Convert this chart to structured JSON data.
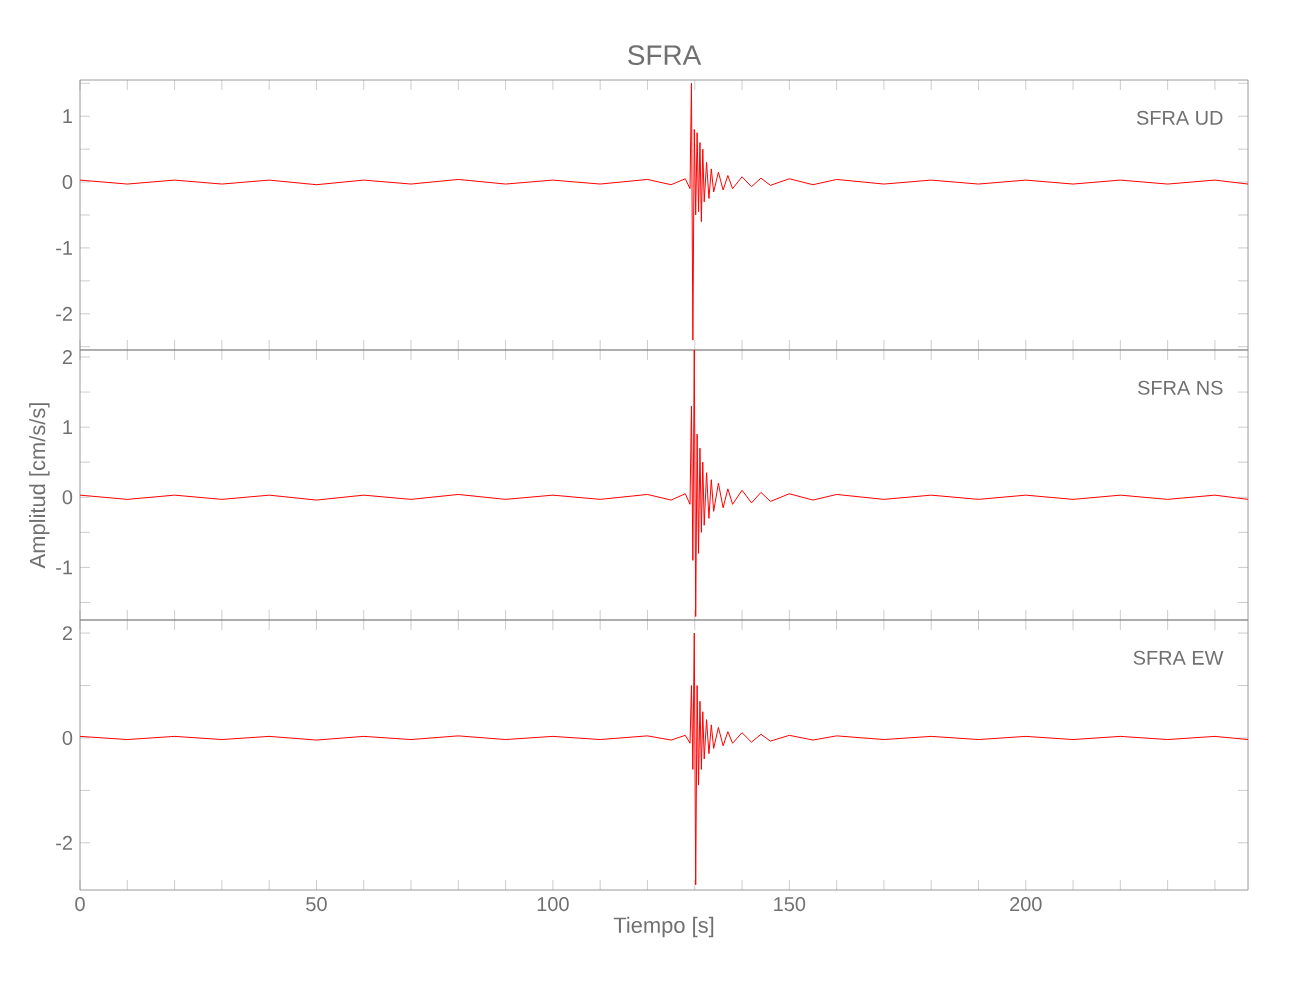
{
  "chart_data": [
    {
      "type": "line",
      "title": "SFRA",
      "annotations": [
        "SFRA UD"
      ],
      "tick_labels": "y",
      "x": [
        0,
        10,
        20,
        30,
        40,
        50,
        60,
        70,
        80,
        90,
        100,
        110,
        120,
        125,
        128,
        129,
        129.3,
        129.6,
        129.9,
        130.2,
        130.5,
        130.8,
        131.1,
        131.4,
        131.7,
        132,
        132.5,
        133,
        133.5,
        134,
        135,
        136,
        137,
        138,
        140,
        142,
        144,
        146,
        150,
        155,
        160,
        170,
        180,
        190,
        200,
        210,
        220,
        230,
        240,
        247
      ],
      "series": [
        {
          "color": "#ff0000",
          "values": [
            0.03,
            -0.03,
            0.03,
            -0.03,
            0.03,
            -0.04,
            0.03,
            -0.03,
            0.04,
            -0.03,
            0.03,
            -0.03,
            0.04,
            -0.04,
            0.05,
            -0.1,
            1.5,
            -2.4,
            0.8,
            -0.5,
            0.75,
            -0.45,
            0.6,
            -0.6,
            0.5,
            -0.3,
            0.3,
            -0.25,
            0.2,
            -0.15,
            0.15,
            -0.12,
            0.1,
            -0.1,
            0.08,
            -0.07,
            0.06,
            -0.05,
            0.05,
            -0.04,
            0.04,
            -0.03,
            0.03,
            -0.03,
            0.03,
            -0.03,
            0.03,
            -0.03,
            0.03,
            -0.03
          ]
        }
      ],
      "xlim": [
        0,
        247
      ],
      "ylim": [
        -2.55,
        1.55
      ],
      "xticks": [
        {
          "value": 0,
          "label": null
        },
        {
          "value": 10,
          "label": null
        },
        {
          "value": 20,
          "label": null
        },
        {
          "value": 30,
          "label": null
        },
        {
          "value": 40,
          "label": null
        },
        {
          "value": 50,
          "label": null
        },
        {
          "value": 60,
          "label": null
        },
        {
          "value": 70,
          "label": null
        },
        {
          "value": 80,
          "label": null
        },
        {
          "value": 90,
          "label": null
        },
        {
          "value": 100,
          "label": null
        },
        {
          "value": 110,
          "label": null
        },
        {
          "value": 120,
          "label": null
        },
        {
          "value": 130,
          "label": null
        },
        {
          "value": 140,
          "label": null
        },
        {
          "value": 150,
          "label": null
        },
        {
          "value": 160,
          "label": null
        },
        {
          "value": 170,
          "label": null
        },
        {
          "value": 180,
          "label": null
        },
        {
          "value": 190,
          "label": null
        },
        {
          "value": 200,
          "label": null
        },
        {
          "value": 210,
          "label": null
        },
        {
          "value": 220,
          "label": null
        },
        {
          "value": 230,
          "label": null
        },
        {
          "value": 240,
          "label": null
        }
      ],
      "yticks": [
        {
          "value": 1.5,
          "label": null
        },
        1,
        {
          "value": 0.5,
          "label": null
        },
        0,
        {
          "value": -0.5,
          "label": null
        },
        -1,
        {
          "value": -1.5,
          "label": null
        },
        -2,
        {
          "value": -2.5,
          "label": null
        }
      ]
    },
    {
      "type": "line",
      "ylabel": "Amplitud [cm/s/s]",
      "annotations": [
        "SFRA NS"
      ],
      "tick_labels": "y",
      "x": [
        0,
        10,
        20,
        30,
        40,
        50,
        60,
        70,
        80,
        90,
        100,
        110,
        120,
        125,
        128,
        129,
        129.3,
        129.6,
        129.9,
        130.2,
        130.5,
        130.8,
        131.1,
        131.4,
        131.7,
        132,
        132.5,
        133,
        133.5,
        134,
        135,
        136,
        137,
        138,
        140,
        142,
        144,
        146,
        150,
        155,
        160,
        170,
        180,
        190,
        200,
        210,
        220,
        230,
        240,
        247
      ],
      "series": [
        {
          "color": "#ff0000",
          "values": [
            0.03,
            -0.03,
            0.03,
            -0.03,
            0.03,
            -0.04,
            0.03,
            -0.03,
            0.04,
            -0.03,
            0.03,
            -0.03,
            0.04,
            -0.04,
            0.05,
            -0.1,
            1.3,
            -0.9,
            2.1,
            -1.7,
            0.9,
            -0.8,
            0.7,
            -0.5,
            0.5,
            -0.4,
            0.35,
            -0.3,
            0.25,
            -0.2,
            0.2,
            -0.15,
            0.12,
            -0.1,
            0.1,
            -0.08,
            0.07,
            -0.06,
            0.05,
            -0.04,
            0.04,
            -0.03,
            0.03,
            -0.03,
            0.03,
            -0.03,
            0.03,
            -0.03,
            0.03,
            -0.03
          ]
        }
      ],
      "xlim": [
        0,
        247
      ],
      "ylim": [
        -1.75,
        2.1
      ],
      "xticks": [
        {
          "value": 0,
          "label": null
        },
        {
          "value": 10,
          "label": null
        },
        {
          "value": 20,
          "label": null
        },
        {
          "value": 30,
          "label": null
        },
        {
          "value": 40,
          "label": null
        },
        {
          "value": 50,
          "label": null
        },
        {
          "value": 60,
          "label": null
        },
        {
          "value": 70,
          "label": null
        },
        {
          "value": 80,
          "label": null
        },
        {
          "value": 90,
          "label": null
        },
        {
          "value": 100,
          "label": null
        },
        {
          "value": 110,
          "label": null
        },
        {
          "value": 120,
          "label": null
        },
        {
          "value": 130,
          "label": null
        },
        {
          "value": 140,
          "label": null
        },
        {
          "value": 150,
          "label": null
        },
        {
          "value": 160,
          "label": null
        },
        {
          "value": 170,
          "label": null
        },
        {
          "value": 180,
          "label": null
        },
        {
          "value": 190,
          "label": null
        },
        {
          "value": 200,
          "label": null
        },
        {
          "value": 210,
          "label": null
        },
        {
          "value": 220,
          "label": null
        },
        {
          "value": 230,
          "label": null
        },
        {
          "value": 240,
          "label": null
        }
      ],
      "yticks": [
        2,
        {
          "value": 1.5,
          "label": null
        },
        1,
        {
          "value": 0.5,
          "label": null
        },
        0,
        {
          "value": -0.5,
          "label": null
        },
        -1,
        {
          "value": -1.5,
          "label": null
        }
      ]
    },
    {
      "type": "line",
      "xlabel": "Tiempo [s]",
      "annotations": [
        "SFRA EW"
      ],
      "x": [
        0,
        10,
        20,
        30,
        40,
        50,
        60,
        70,
        80,
        90,
        100,
        110,
        120,
        125,
        128,
        129,
        129.3,
        129.6,
        129.9,
        130.2,
        130.5,
        130.8,
        131.1,
        131.4,
        131.7,
        132,
        132.5,
        133,
        133.5,
        134,
        135,
        136,
        137,
        138,
        140,
        142,
        144,
        146,
        150,
        155,
        160,
        170,
        180,
        190,
        200,
        210,
        220,
        230,
        240,
        247
      ],
      "series": [
        {
          "color": "#ff0000",
          "values": [
            0.03,
            -0.03,
            0.03,
            -0.03,
            0.03,
            -0.04,
            0.03,
            -0.03,
            0.04,
            -0.03,
            0.03,
            -0.03,
            0.04,
            -0.04,
            0.05,
            -0.1,
            1.0,
            -0.6,
            2.0,
            -2.8,
            1.0,
            -0.9,
            0.7,
            -0.6,
            0.5,
            -0.4,
            0.35,
            -0.3,
            0.25,
            -0.2,
            0.2,
            -0.15,
            0.12,
            -0.1,
            0.1,
            -0.08,
            0.07,
            -0.06,
            0.05,
            -0.04,
            0.04,
            -0.03,
            0.03,
            -0.03,
            0.03,
            -0.03,
            0.03,
            -0.03,
            0.03,
            -0.03
          ]
        }
      ],
      "xlim": [
        0,
        247
      ],
      "ylim": [
        -2.9,
        2.25
      ],
      "xticks": [
        0,
        {
          "value": 10,
          "label": null
        },
        {
          "value": 20,
          "label": null
        },
        {
          "value": 30,
          "label": null
        },
        {
          "value": 40,
          "label": null
        },
        50,
        {
          "value": 60,
          "label": null
        },
        {
          "value": 70,
          "label": null
        },
        {
          "value": 80,
          "label": null
        },
        {
          "value": 90,
          "label": null
        },
        100,
        {
          "value": 110,
          "label": null
        },
        {
          "value": 120,
          "label": null
        },
        {
          "value": 130,
          "label": null
        },
        {
          "value": 140,
          "label": null
        },
        150,
        {
          "value": 160,
          "label": null
        },
        {
          "value": 170,
          "label": null
        },
        {
          "value": 180,
          "label": null
        },
        {
          "value": 190,
          "label": null
        },
        200,
        {
          "value": 210,
          "label": null
        },
        {
          "value": 220,
          "label": null
        },
        {
          "value": 230,
          "label": null
        },
        {
          "value": 240,
          "label": null
        }
      ],
      "yticks": [
        2,
        {
          "value": 1,
          "label": null
        },
        0,
        {
          "value": -1,
          "label": null
        },
        -2
      ]
    }
  ]
}
